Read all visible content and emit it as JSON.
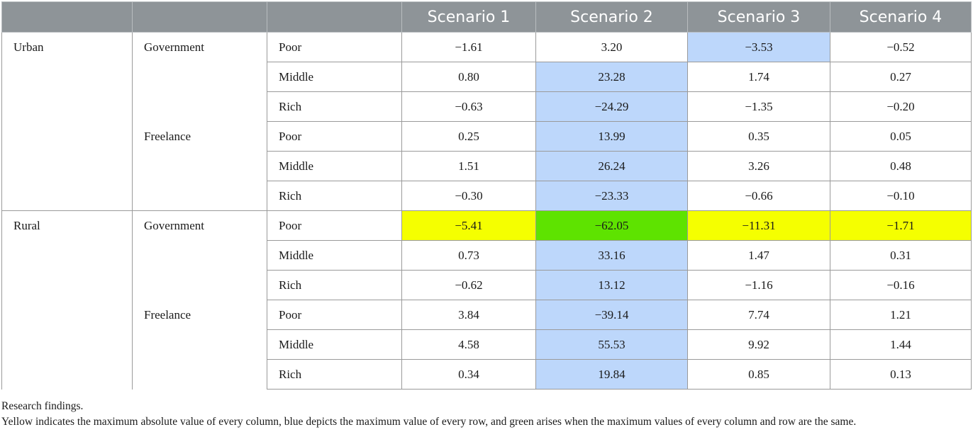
{
  "table": {
    "headers": [
      "",
      "",
      "",
      "Scenario 1",
      "Scenario 2",
      "Scenario 3",
      "Scenario 4"
    ],
    "groups": [
      {
        "label": "Urban"
      },
      {
        "label": "Rural"
      }
    ],
    "subgroups": [
      {
        "label": "Government"
      },
      {
        "label": "Freelance"
      },
      {
        "label": "Government"
      },
      {
        "label": "Freelance"
      }
    ],
    "rows": [
      {
        "income": "Poor",
        "values": [
          "−1.61",
          "3.20",
          "−3.53",
          "−0.52"
        ],
        "highlights": [
          "",
          "",
          "blue",
          ""
        ]
      },
      {
        "income": "Middle",
        "values": [
          "0.80",
          "23.28",
          "1.74",
          "0.27"
        ],
        "highlights": [
          "",
          "blue",
          "",
          ""
        ]
      },
      {
        "income": "Rich",
        "values": [
          "−0.63",
          "−24.29",
          "−1.35",
          "−0.20"
        ],
        "highlights": [
          "",
          "blue",
          "",
          ""
        ]
      },
      {
        "income": "Poor",
        "values": [
          "0.25",
          "13.99",
          "0.35",
          "0.05"
        ],
        "highlights": [
          "",
          "blue",
          "",
          ""
        ]
      },
      {
        "income": "Middle",
        "values": [
          "1.51",
          "26.24",
          "3.26",
          "0.48"
        ],
        "highlights": [
          "",
          "blue",
          "",
          ""
        ]
      },
      {
        "income": "Rich",
        "values": [
          "−0.30",
          "−23.33",
          "−0.66",
          "−0.10"
        ],
        "highlights": [
          "",
          "blue",
          "",
          ""
        ]
      },
      {
        "income": "Poor",
        "values": [
          "−5.41",
          "−62.05",
          "−11.31",
          "−1.71"
        ],
        "highlights": [
          "yellow",
          "green",
          "yellow",
          "yellow"
        ]
      },
      {
        "income": "Middle",
        "values": [
          "0.73",
          "33.16",
          "1.47",
          "0.31"
        ],
        "highlights": [
          "",
          "blue",
          "",
          ""
        ]
      },
      {
        "income": "Rich",
        "values": [
          "−0.62",
          "13.12",
          "−1.16",
          "−0.16"
        ],
        "highlights": [
          "",
          "blue",
          "",
          ""
        ]
      },
      {
        "income": "Poor",
        "values": [
          "3.84",
          "−39.14",
          "7.74",
          "1.21"
        ],
        "highlights": [
          "",
          "blue",
          "",
          ""
        ]
      },
      {
        "income": "Middle",
        "values": [
          "4.58",
          "55.53",
          "9.92",
          "1.44"
        ],
        "highlights": [
          "",
          "blue",
          "",
          ""
        ]
      },
      {
        "income": "Rich",
        "values": [
          "0.34",
          "19.84",
          "0.85",
          "0.13"
        ],
        "highlights": [
          "",
          "blue",
          "",
          ""
        ]
      }
    ]
  },
  "colors": {
    "header_bg": "#8e9498",
    "blue": "#bdd7fb",
    "yellow": "#f5ff00",
    "green": "#5ee300"
  },
  "notes": {
    "caption": "Research findings.",
    "legend": "Yellow indicates the maximum absolute value of every column, blue depicts the maximum value of every row, and green arises when the maximum values of every column and row are the same."
  }
}
